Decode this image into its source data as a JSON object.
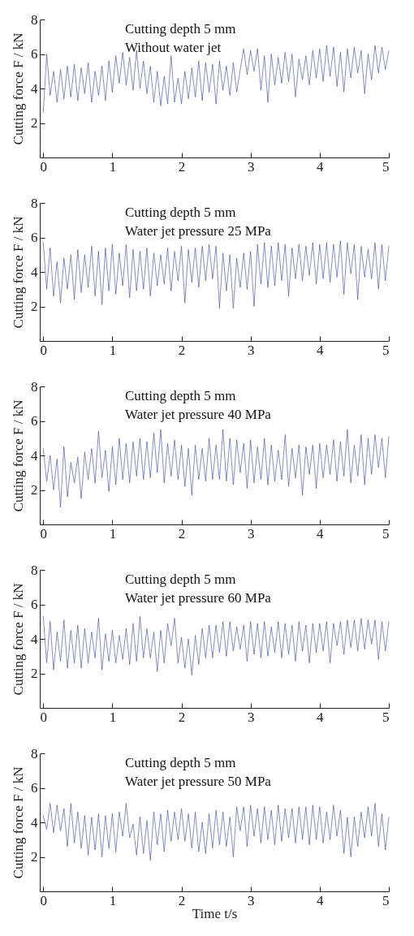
{
  "chart_data": [
    {
      "type": "line",
      "annotations": [
        "Cutting depth 5 mm",
        "Without water jet"
      ],
      "ylabel": "Cutting force F / kN",
      "color": "#3b4099",
      "xlim": [
        -0.05,
        5
      ],
      "ylim": [
        0,
        8
      ],
      "xticks": [
        0,
        1,
        2,
        3,
        4,
        5
      ],
      "yticks": [
        2,
        4,
        6,
        8
      ],
      "x": [
        0,
        0.05,
        0.1,
        0.15,
        0.2,
        0.25,
        0.3,
        0.35,
        0.4,
        0.45,
        0.5,
        0.55,
        0.6,
        0.65,
        0.7,
        0.75,
        0.8,
        0.85,
        0.9,
        0.95,
        1,
        1.05,
        1.1,
        1.15,
        1.2,
        1.25,
        1.3,
        1.35,
        1.4,
        1.45,
        1.5,
        1.55,
        1.6,
        1.65,
        1.7,
        1.75,
        1.8,
        1.85,
        1.9,
        1.95,
        2,
        2.05,
        2.1,
        2.15,
        2.2,
        2.25,
        2.3,
        2.35,
        2.4,
        2.45,
        2.5,
        2.55,
        2.6,
        2.65,
        2.7,
        2.75,
        2.8,
        2.85,
        2.9,
        2.95,
        3,
        3.05,
        3.1,
        3.15,
        3.2,
        3.25,
        3.3,
        3.35,
        3.4,
        3.45,
        3.5,
        3.55,
        3.6,
        3.65,
        3.7,
        3.75,
        3.8,
        3.85,
        3.9,
        3.95,
        4,
        4.05,
        4.1,
        4.15,
        4.2,
        4.25,
        4.3,
        4.35,
        4.4,
        4.45,
        4.5,
        4.55,
        4.6,
        4.65,
        4.7,
        4.75,
        4.8,
        4.85,
        4.9,
        4.95,
        5
      ],
      "values": [
        2.6,
        6.0,
        3.6,
        5.0,
        3.2,
        5.1,
        3.4,
        5.3,
        3.5,
        5.4,
        3.3,
        5.2,
        3.7,
        5.5,
        3.2,
        5.0,
        3.6,
        5.3,
        3.3,
        5.6,
        3.8,
        5.9,
        4.3,
        6.1,
        4.2,
        5.8,
        3.9,
        6.2,
        4.0,
        5.6,
        3.7,
        5.3,
        3.2,
        5.0,
        3.0,
        4.7,
        3.1,
        5.9,
        3.2,
        4.6,
        3.1,
        5.0,
        3.4,
        5.2,
        3.5,
        5.6,
        3.3,
        5.5,
        3.8,
        5.4,
        3.1,
        5.6,
        3.9,
        5.3,
        3.6,
        5.5,
        3.8,
        5.1,
        6.3,
        4.8,
        6.2,
        5.0,
        6.3,
        3.9,
        5.9,
        3.2,
        6.0,
        4.2,
        5.8,
        4.3,
        6.1,
        4.4,
        6.0,
        3.5,
        5.7,
        4.5,
        5.9,
        4.2,
        6.2,
        4.6,
        6.3,
        4.4,
        6.5,
        4.7,
        6.4,
        4.1,
        6.1,
        3.8,
        6.3,
        4.6,
        6.4,
        4.9,
        6.2,
        3.7,
        6.0,
        4.5,
        6.5,
        4.9,
        6.4,
        5.1,
        6.2
      ]
    },
    {
      "type": "line",
      "annotations": [
        "Cutting depth 5 mm",
        "Water jet pressure 25 MPa"
      ],
      "ylabel": "Cutting force F / kN",
      "color": "#3b4099",
      "xlim": [
        -0.05,
        5
      ],
      "ylim": [
        0,
        8
      ],
      "xticks": [
        0,
        1,
        2,
        3,
        4,
        5
      ],
      "yticks": [
        2,
        4,
        6,
        8
      ],
      "x": [
        0,
        0.05,
        0.1,
        0.15,
        0.2,
        0.25,
        0.3,
        0.35,
        0.4,
        0.45,
        0.5,
        0.55,
        0.6,
        0.65,
        0.7,
        0.75,
        0.8,
        0.85,
        0.9,
        0.95,
        1,
        1.05,
        1.1,
        1.15,
        1.2,
        1.25,
        1.3,
        1.35,
        1.4,
        1.45,
        1.5,
        1.55,
        1.6,
        1.65,
        1.7,
        1.75,
        1.8,
        1.85,
        1.9,
        1.95,
        2,
        2.05,
        2.1,
        2.15,
        2.2,
        2.25,
        2.3,
        2.35,
        2.4,
        2.45,
        2.5,
        2.55,
        2.6,
        2.65,
        2.7,
        2.75,
        2.8,
        2.85,
        2.9,
        2.95,
        3,
        3.05,
        3.1,
        3.15,
        3.2,
        3.25,
        3.3,
        3.35,
        3.4,
        3.45,
        3.5,
        3.55,
        3.6,
        3.65,
        3.7,
        3.75,
        3.8,
        3.85,
        3.9,
        3.95,
        4,
        4.05,
        4.1,
        4.15,
        4.2,
        4.25,
        4.3,
        4.35,
        4.4,
        4.45,
        4.5,
        4.55,
        4.6,
        4.65,
        4.7,
        4.75,
        4.8,
        4.85,
        4.9,
        4.95,
        5
      ],
      "values": [
        5.7,
        3.0,
        5.4,
        2.6,
        4.6,
        2.2,
        4.8,
        3.0,
        5.0,
        2.4,
        5.3,
        2.8,
        5.0,
        3.1,
        5.5,
        2.6,
        5.2,
        2.1,
        5.4,
        2.9,
        5.6,
        2.7,
        5.1,
        3.2,
        5.6,
        2.5,
        5.3,
        2.9,
        5.2,
        3.0,
        5.4,
        2.6,
        5.1,
        3.2,
        5.0,
        3.3,
        5.4,
        2.9,
        5.2,
        3.5,
        5.5,
        2.2,
        5.3,
        3.4,
        5.4,
        3.1,
        5.5,
        3.5,
        5.6,
        3.6,
        5.5,
        1.9,
        5.1,
        2.9,
        5.0,
        1.9,
        4.8,
        3.1,
        5.1,
        3.0,
        5.2,
        2.0,
        5.6,
        3.3,
        5.7,
        3.1,
        5.5,
        3.2,
        5.7,
        3.5,
        5.6,
        2.6,
        5.4,
        3.6,
        5.6,
        3.5,
        5.5,
        3.8,
        5.7,
        3.3,
        5.6,
        3.6,
        5.7,
        3.4,
        5.6,
        3.7,
        5.8,
        2.7,
        5.7,
        3.9,
        5.6,
        2.4,
        5.5,
        3.7,
        5.3,
        3.6,
        5.7,
        3.0,
        5.6,
        3.5,
        5.5
      ]
    },
    {
      "type": "line",
      "annotations": [
        "Cutting depth 5 mm",
        "Water jet pressure 40 MPa"
      ],
      "ylabel": "Cutting force F / kN",
      "color": "#3b4099",
      "xlim": [
        -0.05,
        5
      ],
      "ylim": [
        0,
        8
      ],
      "xticks": [
        0,
        1,
        2,
        3,
        4,
        5
      ],
      "yticks": [
        2,
        4,
        6,
        8
      ],
      "x": [
        0,
        0.05,
        0.1,
        0.15,
        0.2,
        0.25,
        0.3,
        0.35,
        0.4,
        0.45,
        0.5,
        0.55,
        0.6,
        0.65,
        0.7,
        0.75,
        0.8,
        0.85,
        0.9,
        0.95,
        1,
        1.05,
        1.1,
        1.15,
        1.2,
        1.25,
        1.3,
        1.35,
        1.4,
        1.45,
        1.5,
        1.55,
        1.6,
        1.65,
        1.7,
        1.75,
        1.8,
        1.85,
        1.9,
        1.95,
        2,
        2.05,
        2.1,
        2.15,
        2.2,
        2.25,
        2.3,
        2.35,
        2.4,
        2.45,
        2.5,
        2.55,
        2.6,
        2.65,
        2.7,
        2.75,
        2.8,
        2.85,
        2.9,
        2.95,
        3,
        3.05,
        3.1,
        3.15,
        3.2,
        3.25,
        3.3,
        3.35,
        3.4,
        3.45,
        3.5,
        3.55,
        3.6,
        3.65,
        3.7,
        3.75,
        3.8,
        3.85,
        3.9,
        3.95,
        4,
        4.05,
        4.1,
        4.15,
        4.2,
        4.25,
        4.3,
        4.35,
        4.4,
        4.45,
        4.5,
        4.55,
        4.6,
        4.65,
        4.7,
        4.75,
        4.8,
        4.85,
        4.9,
        4.95,
        5
      ],
      "values": [
        4.4,
        2.5,
        4.0,
        2.0,
        3.8,
        1.0,
        4.5,
        1.6,
        3.6,
        2.4,
        3.9,
        1.5,
        4.2,
        2.6,
        4.4,
        2.4,
        5.4,
        2.7,
        4.3,
        1.9,
        4.5,
        2.3,
        5.0,
        2.6,
        4.7,
        2.4,
        4.8,
        2.8,
        5.0,
        2.6,
        4.8,
        2.7,
        5.3,
        3.0,
        5.5,
        2.4,
        4.7,
        2.8,
        4.9,
        2.6,
        4.6,
        2.2,
        4.4,
        1.7,
        4.6,
        2.6,
        4.4,
        2.5,
        5.0,
        2.6,
        4.6,
        2.6,
        5.5,
        2.5,
        5.0,
        2.3,
        4.9,
        3.0,
        4.7,
        2.1,
        4.9,
        2.4,
        4.5,
        2.6,
        5.0,
        2.3,
        4.6,
        2.5,
        4.3,
        2.6,
        5.2,
        2.2,
        4.4,
        2.7,
        4.6,
        1.7,
        4.5,
        2.9,
        4.6,
        2.1,
        4.7,
        2.7,
        4.6,
        2.9,
        4.9,
        2.5,
        4.8,
        2.8,
        5.5,
        2.4,
        4.6,
        2.8,
        5.2,
        2.3,
        5.0,
        2.9,
        5.2,
        3.3,
        5.0,
        2.7,
        5.1
      ]
    },
    {
      "type": "line",
      "annotations": [
        "Cutting depth 5 mm",
        "Water jet pressure 60 MPa"
      ],
      "ylabel": "Cutting force F / kN",
      "color": "#3b4099",
      "xlim": [
        -0.05,
        5
      ],
      "ylim": [
        0,
        8
      ],
      "xticks": [
        0,
        1,
        2,
        3,
        4,
        5
      ],
      "yticks": [
        2,
        4,
        6,
        8
      ],
      "x": [
        0,
        0.05,
        0.1,
        0.15,
        0.2,
        0.25,
        0.3,
        0.35,
        0.4,
        0.45,
        0.5,
        0.55,
        0.6,
        0.65,
        0.7,
        0.75,
        0.8,
        0.85,
        0.9,
        0.95,
        1,
        1.05,
        1.1,
        1.15,
        1.2,
        1.25,
        1.3,
        1.35,
        1.4,
        1.45,
        1.5,
        1.55,
        1.6,
        1.65,
        1.7,
        1.75,
        1.8,
        1.85,
        1.9,
        1.95,
        2,
        2.05,
        2.1,
        2.15,
        2.2,
        2.25,
        2.3,
        2.35,
        2.4,
        2.45,
        2.5,
        2.55,
        2.6,
        2.65,
        2.7,
        2.75,
        2.8,
        2.85,
        2.9,
        2.95,
        3,
        3.05,
        3.1,
        3.15,
        3.2,
        3.25,
        3.3,
        3.35,
        3.4,
        3.45,
        3.5,
        3.55,
        3.6,
        3.65,
        3.7,
        3.75,
        3.8,
        3.85,
        3.9,
        3.95,
        4,
        4.05,
        4.1,
        4.15,
        4.2,
        4.25,
        4.3,
        4.35,
        4.4,
        4.45,
        4.5,
        4.55,
        4.6,
        4.65,
        4.7,
        4.75,
        4.8,
        4.85,
        4.9,
        4.95,
        5
      ],
      "values": [
        5.3,
        2.6,
        5.0,
        2.2,
        4.4,
        2.7,
        5.1,
        2.3,
        4.5,
        2.6,
        4.8,
        2.3,
        4.6,
        2.6,
        4.4,
        2.9,
        5.2,
        2.2,
        4.3,
        2.7,
        4.5,
        2.6,
        4.2,
        2.8,
        4.6,
        2.5,
        4.9,
        2.7,
        5.3,
        2.9,
        4.6,
        2.9,
        4.4,
        2.1,
        4.5,
        2.6,
        4.9,
        3.6,
        5.2,
        2.6,
        4.1,
        2.3,
        4.0,
        1.9,
        4.2,
        2.5,
        4.6,
        2.9,
        4.8,
        2.9,
        4.8,
        3.2,
        5.0,
        3.0,
        5.0,
        3.3,
        4.7,
        3.4,
        4.8,
        2.7,
        5.0,
        3.1,
        4.9,
        2.9,
        5.0,
        3.0,
        4.7,
        3.2,
        5.0,
        2.9,
        4.9,
        3.1,
        4.8,
        2.7,
        5.0,
        3.3,
        4.8,
        2.6,
        4.9,
        3.2,
        4.9,
        3.3,
        5.0,
        2.6,
        4.9,
        3.6,
        5.0,
        3.1,
        5.1,
        3.5,
        5.1,
        3.3,
        5.2,
        3.4,
        5.1,
        3.7,
        5.1,
        2.8,
        5.0,
        3.3,
        5.0
      ]
    },
    {
      "type": "line",
      "annotations": [
        "Cutting depth 5 mm",
        "Water jet pressure 50 MPa"
      ],
      "ylabel": "Cutting force F / kN",
      "xlabel": "Time  t/s",
      "color": "#3b4099",
      "xlim": [
        -0.05,
        5
      ],
      "ylim": [
        0,
        8
      ],
      "xticks": [
        0,
        1,
        2,
        3,
        4,
        5
      ],
      "yticks": [
        2,
        4,
        6,
        8
      ],
      "x": [
        0,
        0.05,
        0.1,
        0.15,
        0.2,
        0.25,
        0.3,
        0.35,
        0.4,
        0.45,
        0.5,
        0.55,
        0.6,
        0.65,
        0.7,
        0.75,
        0.8,
        0.85,
        0.9,
        0.95,
        1,
        1.05,
        1.1,
        1.15,
        1.2,
        1.25,
        1.3,
        1.35,
        1.4,
        1.45,
        1.5,
        1.55,
        1.6,
        1.65,
        1.7,
        1.75,
        1.8,
        1.85,
        1.9,
        1.95,
        2,
        2.05,
        2.1,
        2.15,
        2.2,
        2.25,
        2.3,
        2.35,
        2.4,
        2.45,
        2.5,
        2.55,
        2.6,
        2.65,
        2.7,
        2.75,
        2.8,
        2.85,
        2.9,
        2.95,
        3,
        3.05,
        3.1,
        3.15,
        3.2,
        3.25,
        3.3,
        3.35,
        3.4,
        3.45,
        3.5,
        3.55,
        3.6,
        3.65,
        3.7,
        3.75,
        3.8,
        3.85,
        3.9,
        3.95,
        4,
        4.05,
        4.1,
        4.15,
        4.2,
        4.25,
        4.3,
        4.35,
        4.4,
        4.45,
        4.5,
        4.55,
        4.6,
        4.65,
        4.7,
        4.75,
        4.8,
        4.85,
        4.9,
        4.95,
        5
      ],
      "values": [
        4.4,
        3.6,
        5.1,
        3.4,
        5.0,
        3.5,
        4.8,
        2.6,
        5.1,
        2.8,
        4.6,
        2.5,
        4.4,
        2.1,
        4.3,
        2.4,
        4.5,
        2.0,
        4.4,
        2.5,
        4.5,
        2.3,
        4.6,
        3.2,
        5.1,
        3.1,
        3.9,
        2.1,
        4.3,
        2.2,
        4.1,
        1.8,
        4.6,
        2.7,
        4.5,
        2.3,
        4.7,
        2.9,
        4.6,
        3.0,
        4.8,
        2.9,
        4.5,
        2.5,
        4.6,
        2.3,
        4.0,
        2.2,
        4.5,
        2.5,
        4.7,
        2.7,
        4.6,
        2.6,
        4.3,
        2.0,
        4.9,
        3.5,
        4.9,
        2.6,
        5.0,
        3.2,
        4.8,
        2.8,
        4.9,
        3.0,
        4.7,
        2.7,
        5.0,
        2.9,
        4.8,
        3.1,
        4.8,
        2.8,
        4.9,
        3.0,
        4.9,
        2.7,
        5.0,
        3.0,
        4.9,
        2.8,
        4.6,
        3.0,
        5.0,
        3.2,
        4.7,
        2.2,
        4.3,
        2.0,
        4.3,
        2.6,
        4.6,
        3.1,
        4.9,
        3.2,
        5.1,
        2.6,
        4.5,
        2.4,
        4.3
      ]
    }
  ]
}
